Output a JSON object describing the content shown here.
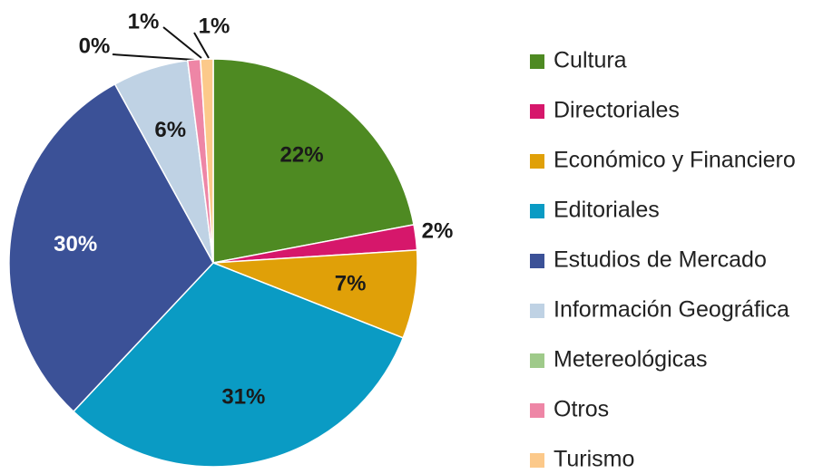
{
  "chart_data": {
    "type": "pie",
    "categories": [
      "Cultura",
      "Directoriales",
      "Económico y Financiero",
      "Editoriales",
      "Estudios de Mercado",
      "Información Geográfica",
      "Metereológicas",
      "Otros",
      "Turismo"
    ],
    "values": [
      22,
      2,
      7,
      31,
      30,
      6,
      0,
      1,
      1
    ],
    "value_labels": [
      "22%",
      "2%",
      "7%",
      "31%",
      "30%",
      "6%",
      "0%",
      "1%",
      "1%"
    ],
    "colors": [
      "#4e8a22",
      "#d6176b",
      "#e0a008",
      "#0a9bc4",
      "#3b5197",
      "#bfd2e4",
      "#9fca8a",
      "#ee86a6",
      "#fcc98a"
    ],
    "label_colors": [
      "#1a1a1a",
      "#1a1a1a",
      "#1a1a1a",
      "#1a1a1a",
      "#ffffff",
      "#1a1a1a",
      "#1a1a1a",
      "#1a1a1a",
      "#1a1a1a"
    ],
    "legend": "right"
  }
}
